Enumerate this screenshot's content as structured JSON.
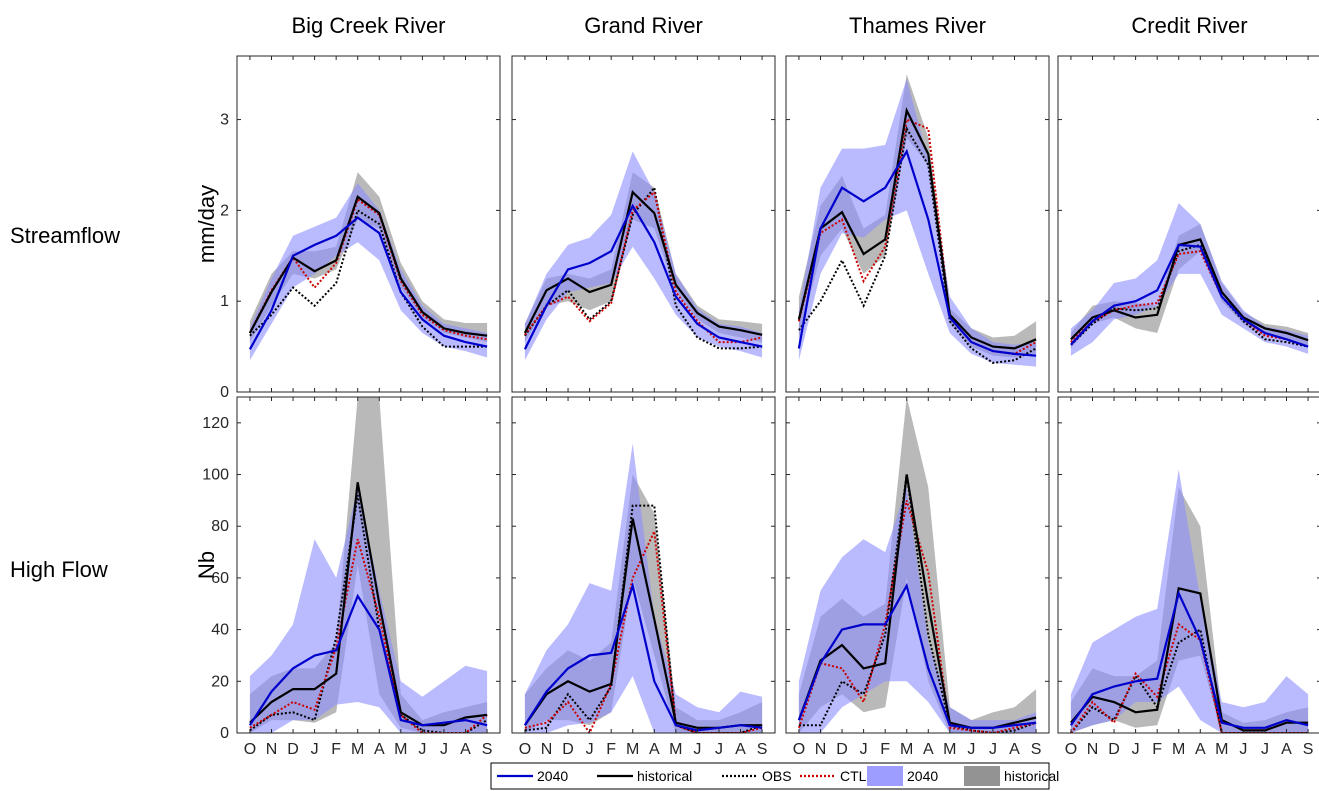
{
  "chart_data": {
    "type": "line",
    "months": [
      "O",
      "N",
      "D",
      "J",
      "F",
      "M",
      "A",
      "M",
      "J",
      "J",
      "A",
      "S"
    ],
    "columns": [
      "Big Creek River",
      "Grand River",
      "Thames River",
      "Credit River"
    ],
    "rows": [
      {
        "label": "Streamflow",
        "ylabel": "mm/day",
        "ylim": [
          0,
          3.7
        ],
        "yticks": [
          0,
          1,
          2,
          3
        ]
      },
      {
        "label": "High Flow",
        "ylabel": "Nb",
        "ylim": [
          0,
          130
        ],
        "yticks": [
          0,
          20,
          40,
          60,
          80,
          100,
          120
        ]
      }
    ],
    "legend": [
      {
        "label": "2040",
        "kind": "line",
        "color": "#0000cc",
        "style": "solid"
      },
      {
        "label": "historical",
        "kind": "line",
        "color": "#000000",
        "style": "solid"
      },
      {
        "label": "OBS",
        "kind": "line",
        "color": "#000000",
        "style": "dotted"
      },
      {
        "label": "CTL",
        "kind": "line",
        "color": "#cc0000",
        "style": "dotted"
      },
      {
        "label": "2040",
        "kind": "band",
        "color": "#8c8cff"
      },
      {
        "label": "historical",
        "kind": "band",
        "color": "#808080"
      }
    ],
    "panels": [
      {
        "row": 0,
        "col": 0,
        "band_hist": {
          "low": [
            0.55,
            0.95,
            1.3,
            1.25,
            1.35,
            1.9,
            1.8,
            1.15,
            0.82,
            0.65,
            0.6,
            0.55
          ],
          "high": [
            0.78,
            1.3,
            1.55,
            1.55,
            1.6,
            2.42,
            2.15,
            1.42,
            1.0,
            0.8,
            0.76,
            0.76
          ]
        },
        "band_2040": {
          "low": [
            0.35,
            0.75,
            1.15,
            1.3,
            1.5,
            1.65,
            1.45,
            0.9,
            0.65,
            0.5,
            0.45,
            0.38
          ],
          "high": [
            0.7,
            1.25,
            1.72,
            1.82,
            1.92,
            2.3,
            2.0,
            1.35,
            0.95,
            0.75,
            0.7,
            0.65
          ]
        },
        "series": {
          "2040": [
            0.47,
            0.9,
            1.5,
            1.62,
            1.72,
            1.92,
            1.75,
            1.1,
            0.8,
            0.62,
            0.55,
            0.5
          ],
          "historical": [
            0.65,
            1.1,
            1.48,
            1.33,
            1.45,
            2.15,
            1.97,
            1.25,
            0.88,
            0.7,
            0.65,
            0.62
          ],
          "OBS": [
            0.62,
            0.85,
            1.15,
            0.95,
            1.2,
            2.0,
            1.85,
            1.1,
            0.72,
            0.5,
            0.5,
            0.5
          ],
          "CTL": [
            0.65,
            1.12,
            1.48,
            1.15,
            1.42,
            2.12,
            1.95,
            1.22,
            0.85,
            0.68,
            0.62,
            0.58
          ]
        }
      },
      {
        "row": 0,
        "col": 1,
        "band_hist": {
          "low": [
            0.55,
            0.95,
            1.0,
            0.9,
            1.0,
            1.9,
            1.8,
            1.1,
            0.8,
            0.65,
            0.6,
            0.55
          ],
          "high": [
            0.75,
            1.25,
            1.3,
            1.25,
            1.35,
            2.42,
            2.25,
            1.3,
            0.95,
            0.8,
            0.78,
            0.75
          ]
        },
        "band_2040": {
          "low": [
            0.35,
            0.8,
            1.1,
            1.15,
            1.2,
            1.6,
            1.25,
            0.85,
            0.6,
            0.5,
            0.45,
            0.38
          ],
          "high": [
            0.75,
            1.3,
            1.62,
            1.7,
            1.95,
            2.65,
            2.2,
            1.3,
            0.92,
            0.75,
            0.72,
            0.65
          ]
        },
        "series": {
          "2040": [
            0.47,
            0.95,
            1.35,
            1.42,
            1.55,
            2.05,
            1.65,
            1.05,
            0.75,
            0.6,
            0.55,
            0.5
          ],
          "historical": [
            0.65,
            1.12,
            1.25,
            1.1,
            1.18,
            2.2,
            1.97,
            1.18,
            0.87,
            0.72,
            0.68,
            0.63
          ],
          "OBS": [
            0.62,
            0.95,
            1.12,
            0.8,
            1.0,
            1.95,
            2.25,
            0.95,
            0.6,
            0.48,
            0.48,
            0.5
          ],
          "CTL": [
            0.63,
            0.95,
            1.05,
            0.78,
            0.98,
            2.0,
            2.2,
            1.1,
            0.78,
            0.55,
            0.55,
            0.6
          ]
        }
      },
      {
        "row": 0,
        "col": 2,
        "band_hist": {
          "low": [
            0.6,
            1.5,
            1.8,
            1.3,
            1.5,
            2.8,
            2.5,
            0.75,
            0.5,
            0.4,
            0.38,
            0.42
          ],
          "high": [
            1.05,
            2.05,
            2.38,
            1.8,
            1.95,
            3.5,
            2.8,
            0.92,
            0.7,
            0.6,
            0.62,
            0.78
          ]
        },
        "band_2040": {
          "low": [
            0.35,
            1.3,
            1.75,
            1.7,
            1.9,
            2.0,
            1.3,
            0.65,
            0.42,
            0.32,
            0.3,
            0.28
          ],
          "high": [
            0.9,
            2.25,
            2.68,
            2.68,
            2.72,
            3.45,
            2.55,
            1.05,
            0.7,
            0.55,
            0.52,
            0.55
          ]
        },
        "series": {
          "2040": [
            0.48,
            1.8,
            2.25,
            2.1,
            2.25,
            2.65,
            1.9,
            0.82,
            0.55,
            0.45,
            0.42,
            0.4
          ],
          "historical": [
            0.8,
            1.8,
            1.98,
            1.52,
            1.68,
            3.1,
            2.62,
            0.85,
            0.6,
            0.5,
            0.48,
            0.58
          ],
          "OBS": [
            0.68,
            1.0,
            1.45,
            0.95,
            1.5,
            2.9,
            2.5,
            0.78,
            0.48,
            0.32,
            0.35,
            0.48
          ],
          "CTL": [
            0.78,
            1.75,
            1.9,
            1.22,
            1.6,
            3.0,
            2.9,
            0.82,
            0.55,
            0.45,
            0.42,
            0.55
          ]
        }
      },
      {
        "row": 0,
        "col": 3,
        "band_hist": {
          "low": [
            0.48,
            0.75,
            0.82,
            0.7,
            0.65,
            1.35,
            1.55,
            1.0,
            0.75,
            0.62,
            0.58,
            0.5
          ],
          "high": [
            0.65,
            0.95,
            1.0,
            0.98,
            0.95,
            1.72,
            1.85,
            1.2,
            0.88,
            0.75,
            0.72,
            0.65
          ]
        },
        "band_2040": {
          "low": [
            0.4,
            0.55,
            0.8,
            0.85,
            0.95,
            1.3,
            1.3,
            0.85,
            0.7,
            0.55,
            0.5,
            0.42
          ],
          "high": [
            0.7,
            0.9,
            1.2,
            1.25,
            1.45,
            2.08,
            1.85,
            1.22,
            0.9,
            0.72,
            0.68,
            0.62
          ]
        },
        "series": {
          "2040": [
            0.52,
            0.78,
            0.95,
            1.0,
            1.12,
            1.62,
            1.6,
            1.05,
            0.8,
            0.65,
            0.58,
            0.5
          ],
          "historical": [
            0.58,
            0.82,
            0.9,
            0.82,
            0.85,
            1.62,
            1.68,
            1.1,
            0.82,
            0.7,
            0.65,
            0.57
          ],
          "OBS": [
            0.52,
            0.75,
            0.92,
            0.9,
            0.92,
            1.55,
            1.62,
            1.05,
            0.78,
            0.58,
            0.55,
            0.5
          ],
          "CTL": [
            0.55,
            0.78,
            0.9,
            0.95,
            0.98,
            1.52,
            1.55,
            1.05,
            0.8,
            0.62,
            0.58,
            0.5
          ]
        }
      },
      {
        "row": 1,
        "col": 0,
        "band_hist": {
          "low": [
            0,
            5,
            5,
            4,
            8,
            65,
            15,
            2,
            0,
            0,
            0,
            0
          ],
          "high": [
            15,
            22,
            25,
            25,
            35,
            135,
            130,
            15,
            5,
            8,
            10,
            12
          ]
        },
        "band_2040": {
          "low": [
            0,
            0,
            5,
            5,
            11,
            12,
            10,
            0,
            0,
            0,
            0,
            0
          ],
          "high": [
            22,
            30,
            42,
            75,
            60,
            95,
            55,
            20,
            14,
            20,
            26,
            24
          ]
        },
        "series": {
          "2040": [
            3,
            16,
            25,
            30,
            32,
            53,
            40,
            5,
            3,
            4,
            5,
            3
          ],
          "historical": [
            4,
            12,
            17,
            17,
            23,
            97,
            50,
            8,
            3,
            3,
            6,
            7
          ],
          "OBS": [
            1,
            7,
            8,
            5,
            37,
            92,
            40,
            7,
            1,
            0,
            0,
            5
          ],
          "CTL": [
            2,
            7,
            12,
            9,
            33,
            75,
            45,
            7,
            0,
            0,
            0,
            7
          ]
        }
      },
      {
        "row": 1,
        "col": 1,
        "band_hist": {
          "low": [
            0,
            5,
            5,
            3,
            8,
            60,
            30,
            0,
            0,
            0,
            0,
            0
          ],
          "high": [
            15,
            25,
            32,
            28,
            35,
            100,
            85,
            10,
            5,
            5,
            8,
            12
          ]
        },
        "band_2040": {
          "low": [
            0,
            0,
            3,
            4,
            8,
            22,
            0,
            0,
            0,
            0,
            0,
            0
          ],
          "high": [
            15,
            32,
            42,
            58,
            55,
            112,
            45,
            15,
            10,
            8,
            16,
            14
          ]
        },
        "series": {
          "2040": [
            3,
            16,
            25,
            30,
            31,
            57,
            20,
            3,
            1,
            2,
            3,
            2
          ],
          "historical": [
            3,
            15,
            20,
            16,
            19,
            83,
            44,
            4,
            2,
            2,
            3,
            3
          ],
          "OBS": [
            1,
            2,
            15,
            5,
            18,
            88,
            88,
            3,
            0,
            0,
            0,
            3
          ],
          "CTL": [
            2,
            4,
            12,
            0,
            19,
            60,
            78,
            3,
            0,
            0,
            0,
            2
          ]
        }
      },
      {
        "row": 1,
        "col": 2,
        "band_hist": {
          "low": [
            0,
            10,
            15,
            8,
            10,
            60,
            20,
            0,
            0,
            0,
            0,
            0
          ],
          "high": [
            15,
            45,
            52,
            45,
            50,
            132,
            95,
            10,
            5,
            8,
            10,
            17
          ]
        },
        "band_2040": {
          "low": [
            0,
            0,
            10,
            15,
            20,
            20,
            12,
            0,
            0,
            0,
            0,
            0
          ],
          "high": [
            20,
            55,
            68,
            75,
            70,
            95,
            35,
            10,
            5,
            5,
            5,
            8
          ]
        },
        "series": {
          "2040": [
            5,
            27,
            40,
            42,
            42,
            57,
            25,
            3,
            2,
            2,
            3,
            4
          ],
          "historical": [
            5,
            28,
            34,
            25,
            27,
            100,
            50,
            4,
            2,
            2,
            4,
            6
          ],
          "OBS": [
            3,
            3,
            20,
            15,
            38,
            100,
            38,
            3,
            1,
            0,
            1,
            4
          ],
          "CTL": [
            2,
            27,
            25,
            12,
            42,
            90,
            62,
            2,
            1,
            0,
            2,
            4
          ]
        }
      },
      {
        "row": 1,
        "col": 3,
        "band_hist": {
          "low": [
            0,
            3,
            5,
            2,
            3,
            28,
            30,
            0,
            0,
            0,
            0,
            0
          ],
          "high": [
            12,
            25,
            22,
            22,
            28,
            95,
            80,
            8,
            4,
            5,
            8,
            10
          ]
        },
        "band_2040": {
          "low": [
            0,
            3,
            5,
            12,
            12,
            18,
            5,
            0,
            0,
            0,
            0,
            0
          ],
          "high": [
            15,
            35,
            40,
            45,
            48,
            102,
            52,
            12,
            10,
            12,
            22,
            15
          ]
        },
        "series": {
          "2040": [
            3,
            15,
            18,
            20,
            21,
            54,
            36,
            4,
            2,
            2,
            5,
            3
          ],
          "historical": [
            4,
            14,
            12,
            8,
            9,
            56,
            54,
            5,
            1,
            1,
            4,
            4
          ],
          "OBS": [
            0,
            10,
            5,
            22,
            10,
            35,
            40,
            0,
            0,
            0,
            0,
            0
          ],
          "CTL": [
            0,
            12,
            4,
            23,
            14,
            42,
            36,
            0,
            0,
            0,
            0,
            0
          ]
        }
      }
    ]
  },
  "colors": {
    "line_2040": "#0000cc",
    "line_historical": "#000000",
    "line_obs": "#000000",
    "line_ctl": "#cc0000",
    "band_2040": "#8c8cff",
    "band_historical": "#808080"
  }
}
